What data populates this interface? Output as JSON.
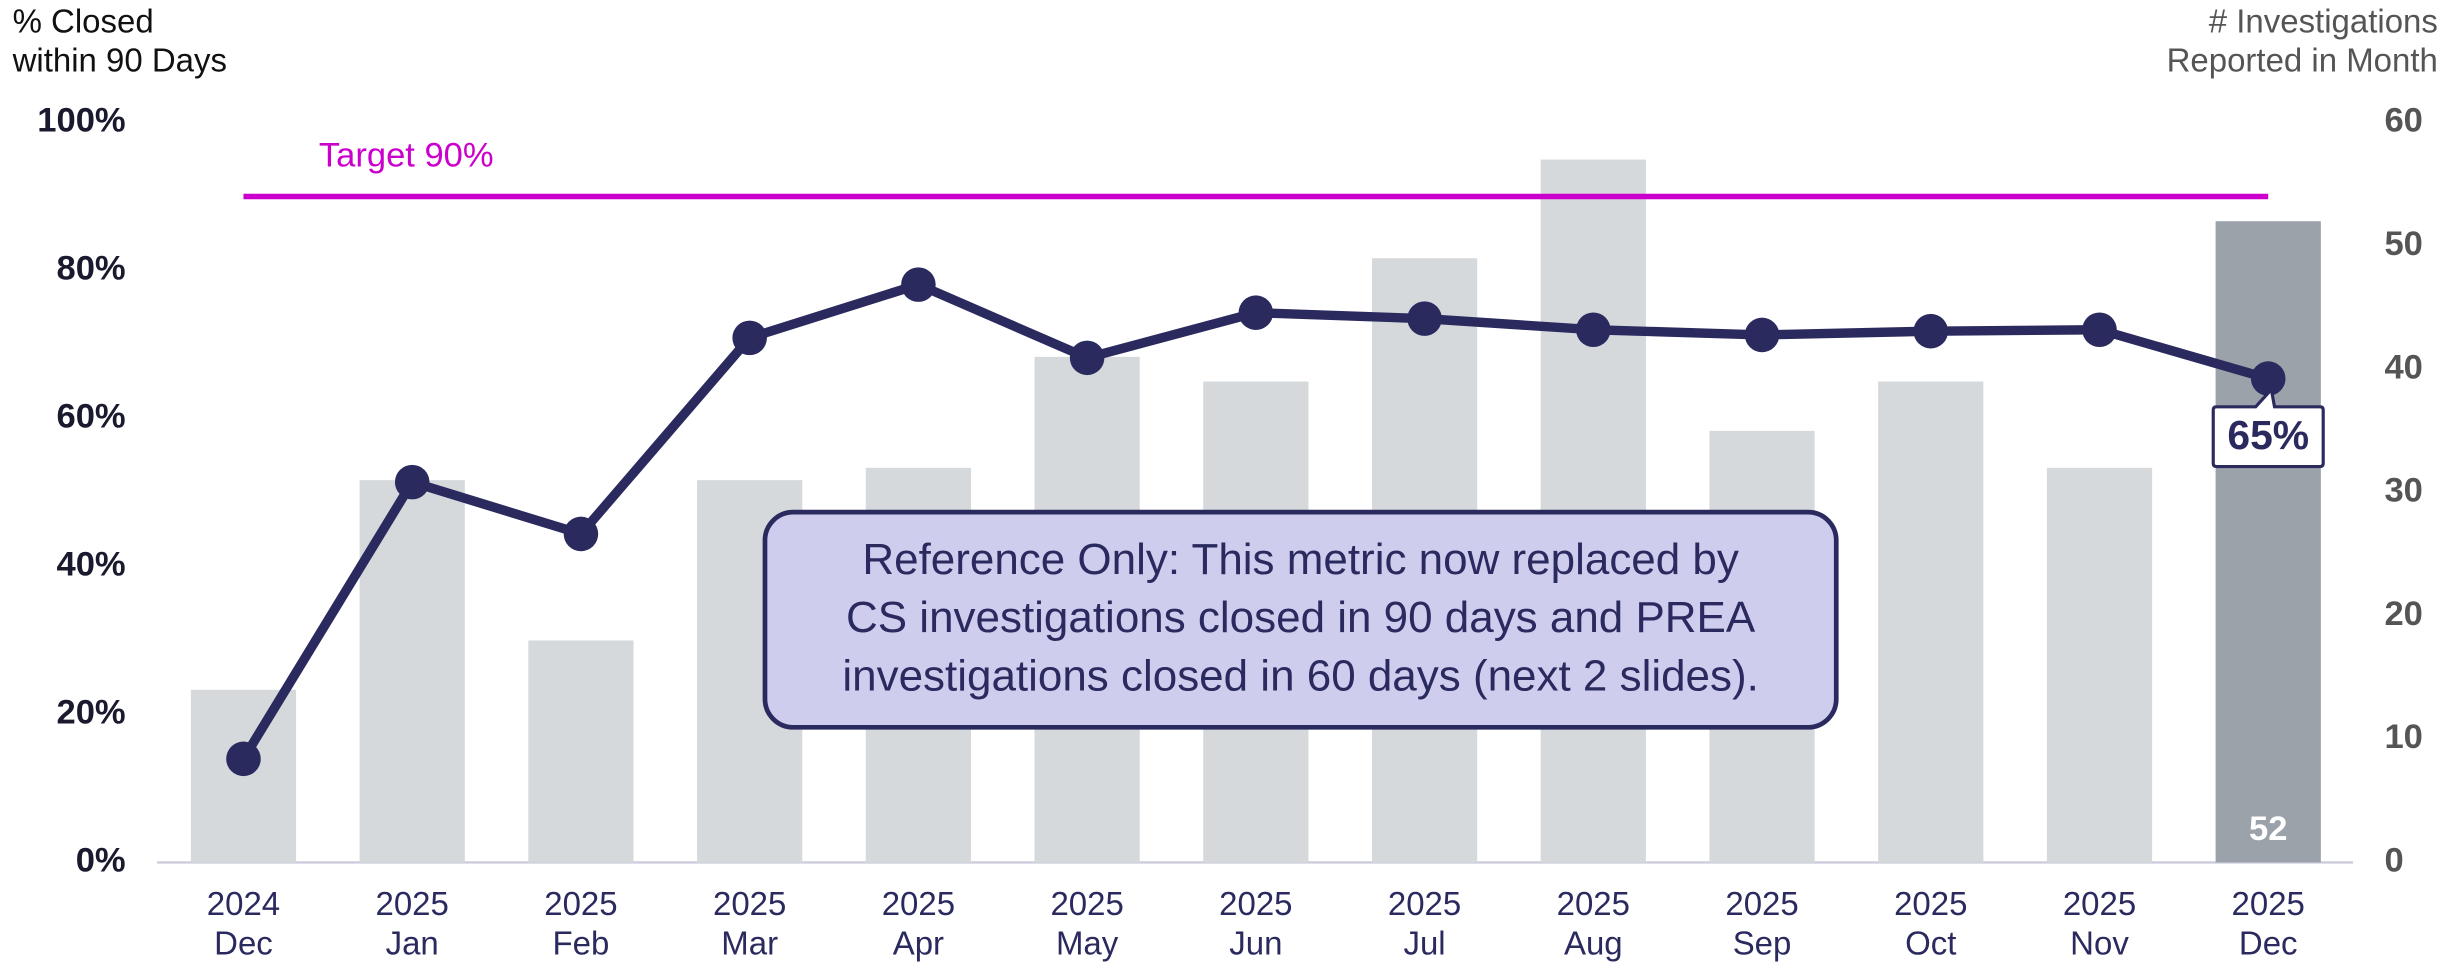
{
  "chart_data": {
    "type": "bar-line",
    "y_label": [
      "% Closed",
      "within 90 Days"
    ],
    "y2_label": [
      "# Investigations",
      "Reported in Month"
    ],
    "categories": [
      [
        "2024",
        "Dec"
      ],
      [
        "2025",
        "Jan"
      ],
      [
        "2025",
        "Feb"
      ],
      [
        "2025",
        "Mar"
      ],
      [
        "2025",
        "Apr"
      ],
      [
        "2025",
        "May"
      ],
      [
        "2025",
        "Jun"
      ],
      [
        "2025",
        "Jul"
      ],
      [
        "2025",
        "Aug"
      ],
      [
        "2025",
        "Sep"
      ],
      [
        "2025",
        "Oct"
      ],
      [
        "2025",
        "Nov"
      ],
      [
        "2025",
        "Dec"
      ]
    ],
    "series": [
      {
        "type": "bar",
        "axis": "y2",
        "color": "#d6d9dc",
        "highlight_color": "#9ba2aa",
        "values": [
          14,
          31,
          18,
          31,
          32,
          41,
          39,
          49,
          57,
          35,
          39,
          32,
          52
        ],
        "value_labels": [
          null,
          null,
          null,
          null,
          null,
          null,
          null,
          null,
          null,
          null,
          null,
          null,
          "52"
        ]
      },
      {
        "type": "line",
        "axis": "y",
        "color": "#2b2a5f",
        "values": [
          14,
          51.4,
          44.4,
          70.9,
          78.1,
          68.2,
          74.3,
          73.5,
          72,
          71.3,
          71.8,
          72,
          65.4
        ],
        "value_labels": [
          null,
          null,
          null,
          null,
          null,
          null,
          null,
          null,
          null,
          null,
          null,
          null,
          "65%"
        ]
      }
    ],
    "target": {
      "value": 90,
      "label": "Target 90%",
      "color": "#cc00cc"
    },
    "annotation": [
      "Reference Only: This metric now replaced by",
      "CS investigations closed in 90 days and PREA",
      "investigations closed in 60 days (next 2 slides)."
    ],
    "ylim": [
      0,
      100
    ],
    "yticks": [
      {
        "value": 0,
        "label": "0%"
      },
      {
        "value": 20,
        "label": "20%"
      },
      {
        "value": 40,
        "label": "40%"
      },
      {
        "value": 60,
        "label": "60%"
      },
      {
        "value": 80,
        "label": "80%"
      },
      {
        "value": 100,
        "label": "100%"
      }
    ],
    "y2lim": [
      0,
      60
    ],
    "y2ticks": [
      0,
      10,
      20,
      30,
      40,
      50,
      60
    ]
  }
}
